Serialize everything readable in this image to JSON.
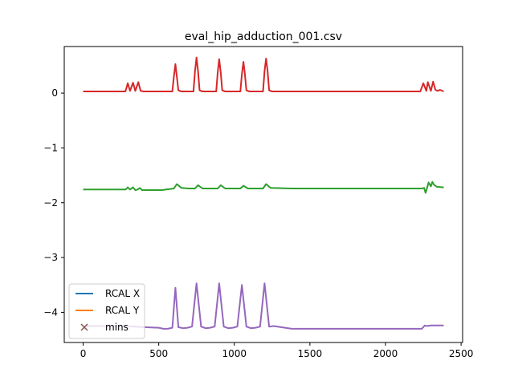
{
  "chart_data": {
    "type": "line",
    "title": "eval_hip_adduction_001.csv",
    "xlabel": "",
    "ylabel": "",
    "xlim": [
      -125,
      2510
    ],
    "ylim": [
      -4.55,
      0.85
    ],
    "x_ticks": [
      0,
      500,
      1000,
      1500,
      2000,
      2500
    ],
    "x_tick_labels": [
      "0",
      "500",
      "1000",
      "1500",
      "2000",
      "2500"
    ],
    "y_ticks": [
      0,
      -1,
      -2,
      -3,
      -4
    ],
    "y_tick_labels": [
      "0",
      "−1",
      "−2",
      "−3",
      "−4"
    ],
    "grid": false,
    "legend": {
      "position": "lower-left",
      "entries": [
        {
          "label": "RCAL X",
          "color": "#1f77b4",
          "marker": "line"
        },
        {
          "label": "RCAL Y",
          "color": "#ff7f0e",
          "marker": "line"
        },
        {
          "label": "mins",
          "color": "#8c564b",
          "marker": "x"
        }
      ]
    },
    "series": [
      {
        "color": "#d62728",
        "x": [
          0,
          280,
          295,
          310,
          330,
          345,
          365,
          380,
          400,
          590,
          600,
          610,
          620,
          630,
          650,
          730,
          740,
          750,
          760,
          770,
          790,
          880,
          890,
          900,
          910,
          920,
          940,
          1040,
          1050,
          1060,
          1070,
          1080,
          1100,
          1190,
          1200,
          1210,
          1220,
          1230,
          1250,
          1400,
          2230,
          2250,
          2270,
          2280,
          2300,
          2315,
          2330,
          2345,
          2360,
          2385
        ],
        "y": [
          0.03,
          0.03,
          0.18,
          0.04,
          0.19,
          0.04,
          0.2,
          0.04,
          0.03,
          0.03,
          0.3,
          0.53,
          0.3,
          0.05,
          0.03,
          0.03,
          0.4,
          0.65,
          0.4,
          0.05,
          0.03,
          0.03,
          0.38,
          0.62,
          0.38,
          0.05,
          0.03,
          0.03,
          0.35,
          0.57,
          0.35,
          0.05,
          0.03,
          0.03,
          0.4,
          0.63,
          0.4,
          0.05,
          0.03,
          0.03,
          0.03,
          0.18,
          0.04,
          0.2,
          0.04,
          0.21,
          0.06,
          0.04,
          0.06,
          0.03
        ]
      },
      {
        "color": "#2ca02c",
        "x": [
          0,
          280,
          295,
          310,
          330,
          345,
          360,
          375,
          390,
          520,
          600,
          620,
          650,
          700,
          740,
          760,
          790,
          850,
          890,
          910,
          940,
          1000,
          1040,
          1060,
          1090,
          1150,
          1190,
          1210,
          1240,
          1380,
          2240,
          2255,
          2265,
          2275,
          2285,
          2300,
          2310,
          2320,
          2340,
          2385
        ],
        "y": [
          -1.76,
          -1.76,
          -1.72,
          -1.76,
          -1.72,
          -1.77,
          -1.76,
          -1.73,
          -1.77,
          -1.77,
          -1.74,
          -1.66,
          -1.73,
          -1.74,
          -1.74,
          -1.68,
          -1.74,
          -1.74,
          -1.74,
          -1.68,
          -1.74,
          -1.74,
          -1.74,
          -1.69,
          -1.74,
          -1.74,
          -1.74,
          -1.66,
          -1.73,
          -1.74,
          -1.74,
          -1.73,
          -1.82,
          -1.73,
          -1.63,
          -1.7,
          -1.62,
          -1.67,
          -1.71,
          -1.72
        ]
      },
      {
        "color": "#9467bd",
        "x": [
          0,
          280,
          400,
          500,
          530,
          560,
          590,
          610,
          630,
          660,
          690,
          720,
          750,
          780,
          810,
          840,
          870,
          900,
          930,
          960,
          990,
          1020,
          1050,
          1080,
          1110,
          1140,
          1170,
          1200,
          1230,
          1260,
          1380,
          2240,
          2260,
          2275,
          2300,
          2385
        ],
        "y": [
          -4.25,
          -4.25,
          -4.27,
          -4.28,
          -4.3,
          -4.3,
          -4.28,
          -3.55,
          -4.27,
          -4.29,
          -4.28,
          -4.26,
          -3.47,
          -4.26,
          -4.29,
          -4.28,
          -4.26,
          -3.47,
          -4.26,
          -4.29,
          -4.28,
          -4.26,
          -3.5,
          -4.26,
          -4.29,
          -4.28,
          -4.26,
          -3.47,
          -4.26,
          -4.25,
          -4.3,
          -4.3,
          -4.24,
          -4.25,
          -4.24,
          -4.24
        ]
      }
    ]
  }
}
